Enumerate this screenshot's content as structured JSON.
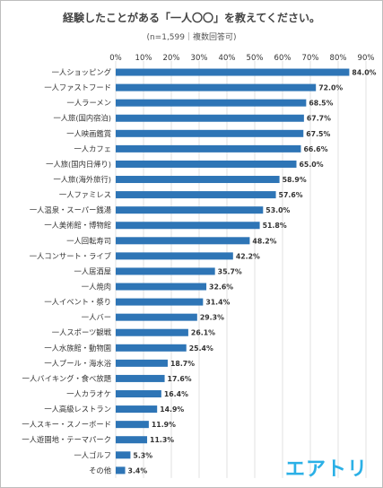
{
  "title": "経験したことがある「一人〇〇」を教えてください。",
  "subtitle": "(n=1,599｜複数回答可)",
  "logo": "エアトリ",
  "colors": {
    "bar": "#2e75b6",
    "grid": "#d9d9d9",
    "label": "#333333"
  },
  "chart_data": {
    "type": "bar",
    "orientation": "horizontal",
    "categories": [
      "一人ショッピング",
      "一人ファストフード",
      "一人ラーメン",
      "一人旅(国内宿泊)",
      "一人映画鑑賞",
      "一人カフェ",
      "一人旅(国内日帰り)",
      "一人旅(海外旅行)",
      "一人ファミレス",
      "一人温泉・スーパー銭湯",
      "一人美術館・博物館",
      "一人回転寿司",
      "一人コンサート・ライブ",
      "一人居酒屋",
      "一人焼肉",
      "一人イベント・祭り",
      "一人バー",
      "一人スポーツ観戦",
      "一人水族館・動物園",
      "一人プール・海水浴",
      "一人バイキング・食べ放題",
      "一人カラオケ",
      "一人高級レストラン",
      "一人スキー・スノーボード",
      "一人遊園地・テーマパーク",
      "一人ゴルフ",
      "その他"
    ],
    "values": [
      84.0,
      72.0,
      68.5,
      67.7,
      67.5,
      66.6,
      65.0,
      58.9,
      57.6,
      53.0,
      51.8,
      48.2,
      42.2,
      35.7,
      32.6,
      31.4,
      29.3,
      26.1,
      25.4,
      18.7,
      17.6,
      16.4,
      14.9,
      11.9,
      11.3,
      5.3,
      3.4
    ],
    "value_labels": [
      "84.0%",
      "72.0%",
      "68.5%",
      "67.7%",
      "67.5%",
      "66.6%",
      "65.0%",
      "58.9%",
      "57.6%",
      "53.0%",
      "51.8%",
      "48.2%",
      "42.2%",
      "35.7%",
      "32.6%",
      "31.4%",
      "29.3%",
      "26.1%",
      "25.4%",
      "18.7%",
      "17.6%",
      "16.4%",
      "14.9%",
      "11.9%",
      "11.3%",
      "5.3%",
      "3.4%"
    ],
    "x_ticks": [
      "0%",
      "10%",
      "20%",
      "30%",
      "40%",
      "50%",
      "60%",
      "70%",
      "80%",
      "90%"
    ],
    "xlim": [
      0,
      90
    ],
    "xlabel": "",
    "ylabel": "",
    "grid": true,
    "axis_position": "top"
  }
}
